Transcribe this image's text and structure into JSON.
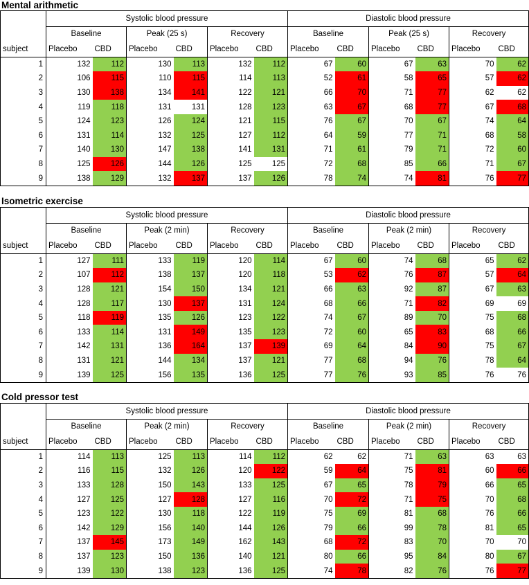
{
  "header": {
    "subject_label": "subject",
    "systolic": "Systolic blood pressure",
    "diastolic": "Diastolic blood pressure",
    "baseline": "Baseline",
    "recovery": "Recovery",
    "placebo": "Placebo",
    "cbd": "CBD"
  },
  "colors": {
    "better": "#92d050",
    "worse": "#ff0000",
    "neutral": "#ffffff"
  },
  "sections": [
    {
      "title": "Mental arithmetic",
      "peak_label": "Peak (25 s)",
      "rows": [
        {
          "subject": "1",
          "values": [
            [
              "132",
              "112",
              "g"
            ],
            [
              "130",
              "113",
              "g"
            ],
            [
              "132",
              "112",
              "g"
            ],
            [
              "67",
              "60",
              "g"
            ],
            [
              "67",
              "63",
              "g"
            ],
            [
              "70",
              "62",
              "g"
            ]
          ]
        },
        {
          "subject": "2",
          "values": [
            [
              "106",
              "115",
              "r"
            ],
            [
              "110",
              "115",
              "r"
            ],
            [
              "114",
              "113",
              "g"
            ],
            [
              "52",
              "61",
              "r"
            ],
            [
              "58",
              "65",
              "r"
            ],
            [
              "57",
              "62",
              "r"
            ]
          ]
        },
        {
          "subject": "3",
          "values": [
            [
              "130",
              "138",
              "r"
            ],
            [
              "134",
              "141",
              "r"
            ],
            [
              "122",
              "121",
              "g"
            ],
            [
              "66",
              "70",
              "r"
            ],
            [
              "71",
              "77",
              "r"
            ],
            [
              "62",
              "62",
              "w"
            ]
          ]
        },
        {
          "subject": "4",
          "values": [
            [
              "119",
              "118",
              "g"
            ],
            [
              "131",
              "131",
              "w"
            ],
            [
              "128",
              "123",
              "g"
            ],
            [
              "63",
              "67",
              "r"
            ],
            [
              "68",
              "77",
              "r"
            ],
            [
              "67",
              "68",
              "r"
            ]
          ]
        },
        {
          "subject": "5",
          "values": [
            [
              "124",
              "123",
              "g"
            ],
            [
              "126",
              "124",
              "g"
            ],
            [
              "121",
              "115",
              "g"
            ],
            [
              "76",
              "67",
              "g"
            ],
            [
              "70",
              "67",
              "g"
            ],
            [
              "74",
              "64",
              "g"
            ]
          ]
        },
        {
          "subject": "6",
          "values": [
            [
              "131",
              "114",
              "g"
            ],
            [
              "132",
              "125",
              "g"
            ],
            [
              "127",
              "112",
              "g"
            ],
            [
              "64",
              "59",
              "g"
            ],
            [
              "77",
              "71",
              "g"
            ],
            [
              "68",
              "58",
              "g"
            ]
          ]
        },
        {
          "subject": "7",
          "values": [
            [
              "140",
              "130",
              "g"
            ],
            [
              "147",
              "138",
              "g"
            ],
            [
              "141",
              "131",
              "g"
            ],
            [
              "71",
              "61",
              "g"
            ],
            [
              "79",
              "71",
              "g"
            ],
            [
              "72",
              "60",
              "g"
            ]
          ]
        },
        {
          "subject": "8",
          "values": [
            [
              "125",
              "126",
              "r"
            ],
            [
              "144",
              "126",
              "g"
            ],
            [
              "125",
              "125",
              "w"
            ],
            [
              "72",
              "68",
              "g"
            ],
            [
              "85",
              "66",
              "g"
            ],
            [
              "71",
              "67",
              "g"
            ]
          ]
        },
        {
          "subject": "9",
          "values": [
            [
              "138",
              "129",
              "g"
            ],
            [
              "132",
              "137",
              "r"
            ],
            [
              "137",
              "126",
              "g"
            ],
            [
              "78",
              "74",
              "g"
            ],
            [
              "74",
              "81",
              "r"
            ],
            [
              "76",
              "77",
              "r"
            ]
          ]
        }
      ]
    },
    {
      "title": "Isometric exercise",
      "peak_label": "Peak (2 min)",
      "rows": [
        {
          "subject": "1",
          "values": [
            [
              "127",
              "111",
              "g"
            ],
            [
              "133",
              "119",
              "g"
            ],
            [
              "120",
              "114",
              "g"
            ],
            [
              "67",
              "60",
              "g"
            ],
            [
              "74",
              "68",
              "g"
            ],
            [
              "65",
              "62",
              "g"
            ]
          ]
        },
        {
          "subject": "2",
          "values": [
            [
              "107",
              "112",
              "r"
            ],
            [
              "138",
              "137",
              "g"
            ],
            [
              "120",
              "118",
              "g"
            ],
            [
              "53",
              "62",
              "r"
            ],
            [
              "76",
              "87",
              "r"
            ],
            [
              "57",
              "64",
              "r"
            ]
          ]
        },
        {
          "subject": "3",
          "values": [
            [
              "128",
              "121",
              "g"
            ],
            [
              "154",
              "150",
              "g"
            ],
            [
              "134",
              "121",
              "g"
            ],
            [
              "66",
              "63",
              "g"
            ],
            [
              "92",
              "87",
              "g"
            ],
            [
              "67",
              "63",
              "g"
            ]
          ]
        },
        {
          "subject": "4",
          "values": [
            [
              "128",
              "117",
              "g"
            ],
            [
              "130",
              "137",
              "r"
            ],
            [
              "131",
              "124",
              "g"
            ],
            [
              "68",
              "66",
              "g"
            ],
            [
              "71",
              "82",
              "r"
            ],
            [
              "69",
              "69",
              "w"
            ]
          ]
        },
        {
          "subject": "5",
          "values": [
            [
              "118",
              "119",
              "r"
            ],
            [
              "135",
              "126",
              "g"
            ],
            [
              "123",
              "122",
              "g"
            ],
            [
              "74",
              "67",
              "g"
            ],
            [
              "89",
              "70",
              "g"
            ],
            [
              "75",
              "68",
              "g"
            ]
          ]
        },
        {
          "subject": "6",
          "values": [
            [
              "133",
              "114",
              "g"
            ],
            [
              "131",
              "149",
              "r"
            ],
            [
              "135",
              "123",
              "g"
            ],
            [
              "72",
              "60",
              "g"
            ],
            [
              "65",
              "83",
              "r"
            ],
            [
              "68",
              "66",
              "g"
            ]
          ]
        },
        {
          "subject": "7",
          "values": [
            [
              "142",
              "131",
              "g"
            ],
            [
              "136",
              "164",
              "r"
            ],
            [
              "137",
              "139",
              "r"
            ],
            [
              "69",
              "64",
              "g"
            ],
            [
              "84",
              "90",
              "r"
            ],
            [
              "75",
              "67",
              "g"
            ]
          ]
        },
        {
          "subject": "8",
          "values": [
            [
              "131",
              "121",
              "g"
            ],
            [
              "144",
              "134",
              "g"
            ],
            [
              "137",
              "121",
              "g"
            ],
            [
              "77",
              "68",
              "g"
            ],
            [
              "94",
              "76",
              "g"
            ],
            [
              "78",
              "64",
              "g"
            ]
          ]
        },
        {
          "subject": "9",
          "values": [
            [
              "139",
              "125",
              "g"
            ],
            [
              "156",
              "135",
              "g"
            ],
            [
              "136",
              "125",
              "g"
            ],
            [
              "77",
              "76",
              "g"
            ],
            [
              "93",
              "85",
              "g"
            ],
            [
              "76",
              "76",
              "w"
            ]
          ]
        }
      ]
    },
    {
      "title": "Cold pressor test",
      "peak_label": "Peak (2 min)",
      "rows": [
        {
          "subject": "1",
          "values": [
            [
              "114",
              "113",
              "g"
            ],
            [
              "125",
              "113",
              "g"
            ],
            [
              "114",
              "112",
              "g"
            ],
            [
              "62",
              "62",
              "w"
            ],
            [
              "71",
              "63",
              "g"
            ],
            [
              "63",
              "63",
              "w"
            ]
          ]
        },
        {
          "subject": "2",
          "values": [
            [
              "116",
              "115",
              "g"
            ],
            [
              "132",
              "126",
              "g"
            ],
            [
              "120",
              "122",
              "r"
            ],
            [
              "59",
              "64",
              "r"
            ],
            [
              "75",
              "81",
              "r"
            ],
            [
              "60",
              "66",
              "r"
            ]
          ]
        },
        {
          "subject": "3",
          "values": [
            [
              "133",
              "128",
              "g"
            ],
            [
              "150",
              "143",
              "g"
            ],
            [
              "133",
              "125",
              "g"
            ],
            [
              "67",
              "65",
              "g"
            ],
            [
              "78",
              "79",
              "r"
            ],
            [
              "66",
              "65",
              "g"
            ]
          ]
        },
        {
          "subject": "4",
          "values": [
            [
              "127",
              "125",
              "g"
            ],
            [
              "127",
              "128",
              "r"
            ],
            [
              "127",
              "116",
              "g"
            ],
            [
              "70",
              "72",
              "r"
            ],
            [
              "71",
              "75",
              "r"
            ],
            [
              "70",
              "68",
              "g"
            ]
          ]
        },
        {
          "subject": "5",
          "values": [
            [
              "123",
              "122",
              "g"
            ],
            [
              "130",
              "118",
              "g"
            ],
            [
              "122",
              "119",
              "g"
            ],
            [
              "75",
              "69",
              "g"
            ],
            [
              "81",
              "68",
              "g"
            ],
            [
              "76",
              "66",
              "g"
            ]
          ]
        },
        {
          "subject": "6",
          "values": [
            [
              "142",
              "129",
              "g"
            ],
            [
              "156",
              "140",
              "g"
            ],
            [
              "144",
              "126",
              "g"
            ],
            [
              "79",
              "66",
              "g"
            ],
            [
              "99",
              "78",
              "g"
            ],
            [
              "81",
              "65",
              "g"
            ]
          ]
        },
        {
          "subject": "7",
          "values": [
            [
              "137",
              "145",
              "r"
            ],
            [
              "173",
              "149",
              "g"
            ],
            [
              "162",
              "143",
              "g"
            ],
            [
              "68",
              "72",
              "r"
            ],
            [
              "83",
              "70",
              "g"
            ],
            [
              "70",
              "70",
              "w"
            ]
          ]
        },
        {
          "subject": "8",
          "values": [
            [
              "137",
              "123",
              "g"
            ],
            [
              "150",
              "136",
              "g"
            ],
            [
              "140",
              "121",
              "g"
            ],
            [
              "80",
              "66",
              "g"
            ],
            [
              "95",
              "84",
              "g"
            ],
            [
              "80",
              "67",
              "g"
            ]
          ]
        },
        {
          "subject": "9",
          "values": [
            [
              "139",
              "130",
              "g"
            ],
            [
              "138",
              "123",
              "g"
            ],
            [
              "136",
              "125",
              "g"
            ],
            [
              "74",
              "78",
              "r"
            ],
            [
              "82",
              "76",
              "g"
            ],
            [
              "76",
              "77",
              "r"
            ]
          ]
        }
      ]
    }
  ]
}
